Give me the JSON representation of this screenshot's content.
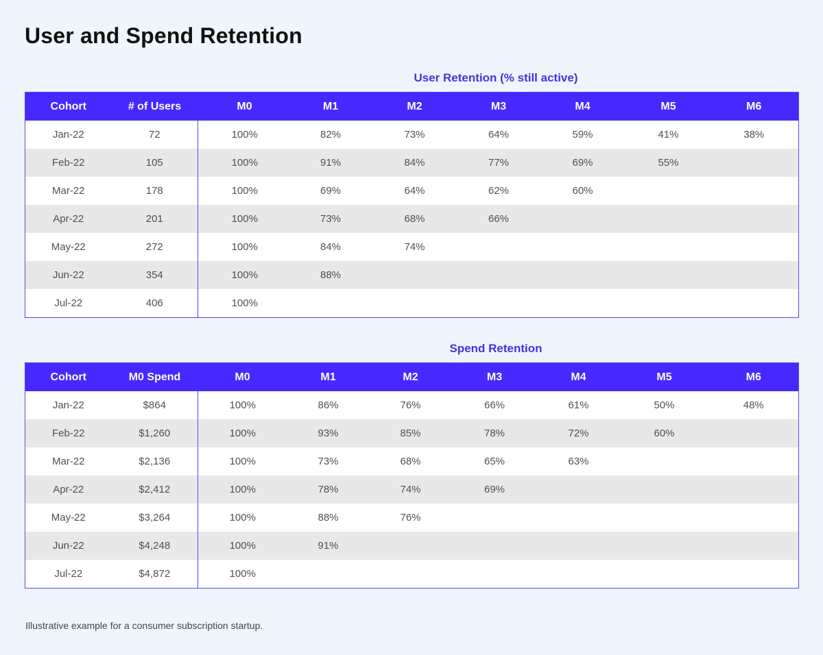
{
  "title": "User and Spend Retention",
  "footnote": "Illustrative example for a consumer subscription startup.",
  "colors": {
    "background": "#eef5fc",
    "header_fill": "#4729ff",
    "accent_text": "#4a2fe0",
    "zebra_row": "#e8e8e8"
  },
  "chart_data": [
    {
      "type": "table",
      "title": "User Retention (% still active)",
      "columns": [
        "Cohort",
        "# of Users",
        "M0",
        "M1",
        "M2",
        "M3",
        "M4",
        "M5",
        "M6"
      ],
      "rows": [
        [
          "Jan-22",
          "72",
          "100%",
          "82%",
          "73%",
          "64%",
          "59%",
          "41%",
          "38%"
        ],
        [
          "Feb-22",
          "105",
          "100%",
          "91%",
          "84%",
          "77%",
          "69%",
          "55%",
          ""
        ],
        [
          "Mar-22",
          "178",
          "100%",
          "69%",
          "64%",
          "62%",
          "60%",
          "",
          ""
        ],
        [
          "Apr-22",
          "201",
          "100%",
          "73%",
          "68%",
          "66%",
          "",
          "",
          ""
        ],
        [
          "May-22",
          "272",
          "100%",
          "84%",
          "74%",
          "",
          "",
          "",
          ""
        ],
        [
          "Jun-22",
          "354",
          "100%",
          "88%",
          "",
          "",
          "",
          "",
          ""
        ],
        [
          "Jul-22",
          "406",
          "100%",
          "",
          "",
          "",
          "",
          "",
          ""
        ]
      ]
    },
    {
      "type": "table",
      "title": "Spend Retention",
      "columns": [
        "Cohort",
        "M0 Spend",
        "M0",
        "M1",
        "M2",
        "M3",
        "M4",
        "M5",
        "M6"
      ],
      "rows": [
        [
          "Jan-22",
          "$864",
          "100%",
          "86%",
          "76%",
          "66%",
          "61%",
          "50%",
          "48%"
        ],
        [
          "Feb-22",
          "$1,260",
          "100%",
          "93%",
          "85%",
          "78%",
          "72%",
          "60%",
          ""
        ],
        [
          "Mar-22",
          "$2,136",
          "100%",
          "73%",
          "68%",
          "65%",
          "63%",
          "",
          ""
        ],
        [
          "Apr-22",
          "$2,412",
          "100%",
          "78%",
          "74%",
          "69%",
          "",
          "",
          ""
        ],
        [
          "May-22",
          "$3,264",
          "100%",
          "88%",
          "76%",
          "",
          "",
          "",
          ""
        ],
        [
          "Jun-22",
          "$4,248",
          "100%",
          "91%",
          "",
          "",
          "",
          "",
          ""
        ],
        [
          "Jul-22",
          "$4,872",
          "100%",
          "",
          "",
          "",
          "",
          "",
          ""
        ]
      ]
    }
  ]
}
